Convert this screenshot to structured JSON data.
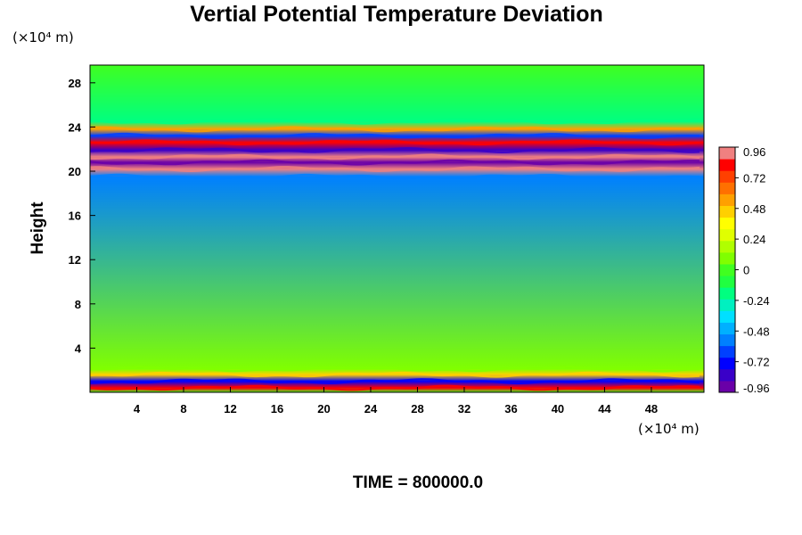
{
  "chart_data": {
    "type": "heatmap",
    "title": "Vertial Potential Temperature Deviation",
    "ylabel": "Height",
    "x_unit": "(×10⁴ m)",
    "y_unit": "(×10⁴ m)",
    "footer": "TIME = 800000.0",
    "x_ticks": [
      4,
      8,
      12,
      16,
      20,
      24,
      28,
      32,
      36,
      40,
      44,
      48
    ],
    "y_ticks": [
      4,
      8,
      12,
      16,
      20,
      24,
      28
    ],
    "xlim": [
      0,
      52.5
    ],
    "ylim": [
      0,
      29.6
    ],
    "colorbar": {
      "ticks": [
        0.96,
        0.72,
        0.48,
        0.24,
        0,
        -0.24,
        -0.48,
        -0.72,
        -0.96
      ],
      "range": [
        -0.96,
        0.96
      ],
      "colors": [
        "#6a00a8",
        "#3a00c8",
        "#0000ff",
        "#0040ff",
        "#0080ff",
        "#00b0ff",
        "#00e0ff",
        "#00f0c0",
        "#00ff80",
        "#20ff40",
        "#40ff20",
        "#80ff00",
        "#b0ff00",
        "#e0ff00",
        "#ffff00",
        "#ffd000",
        "#ffa000",
        "#ff7000",
        "#ff4000",
        "#ff0000",
        "#f08080"
      ]
    },
    "layers": [
      {
        "y": 0.4,
        "value": 0.9
      },
      {
        "y": 1.0,
        "value": -0.8
      },
      {
        "y": 1.6,
        "value": 0.5
      },
      {
        "y": 2.1,
        "value": 0.1
      },
      {
        "y": 19.5,
        "value": -0.6
      },
      {
        "y": 20.2,
        "value": 0.96
      },
      {
        "y": 20.8,
        "value": -0.96
      },
      {
        "y": 21.3,
        "value": 0.96
      },
      {
        "y": 21.9,
        "value": -0.9
      },
      {
        "y": 22.6,
        "value": 0.9
      },
      {
        "y": 23.2,
        "value": -0.7
      },
      {
        "y": 23.8,
        "value": 0.6
      },
      {
        "y": 24.5,
        "value": -0.2
      }
    ]
  }
}
